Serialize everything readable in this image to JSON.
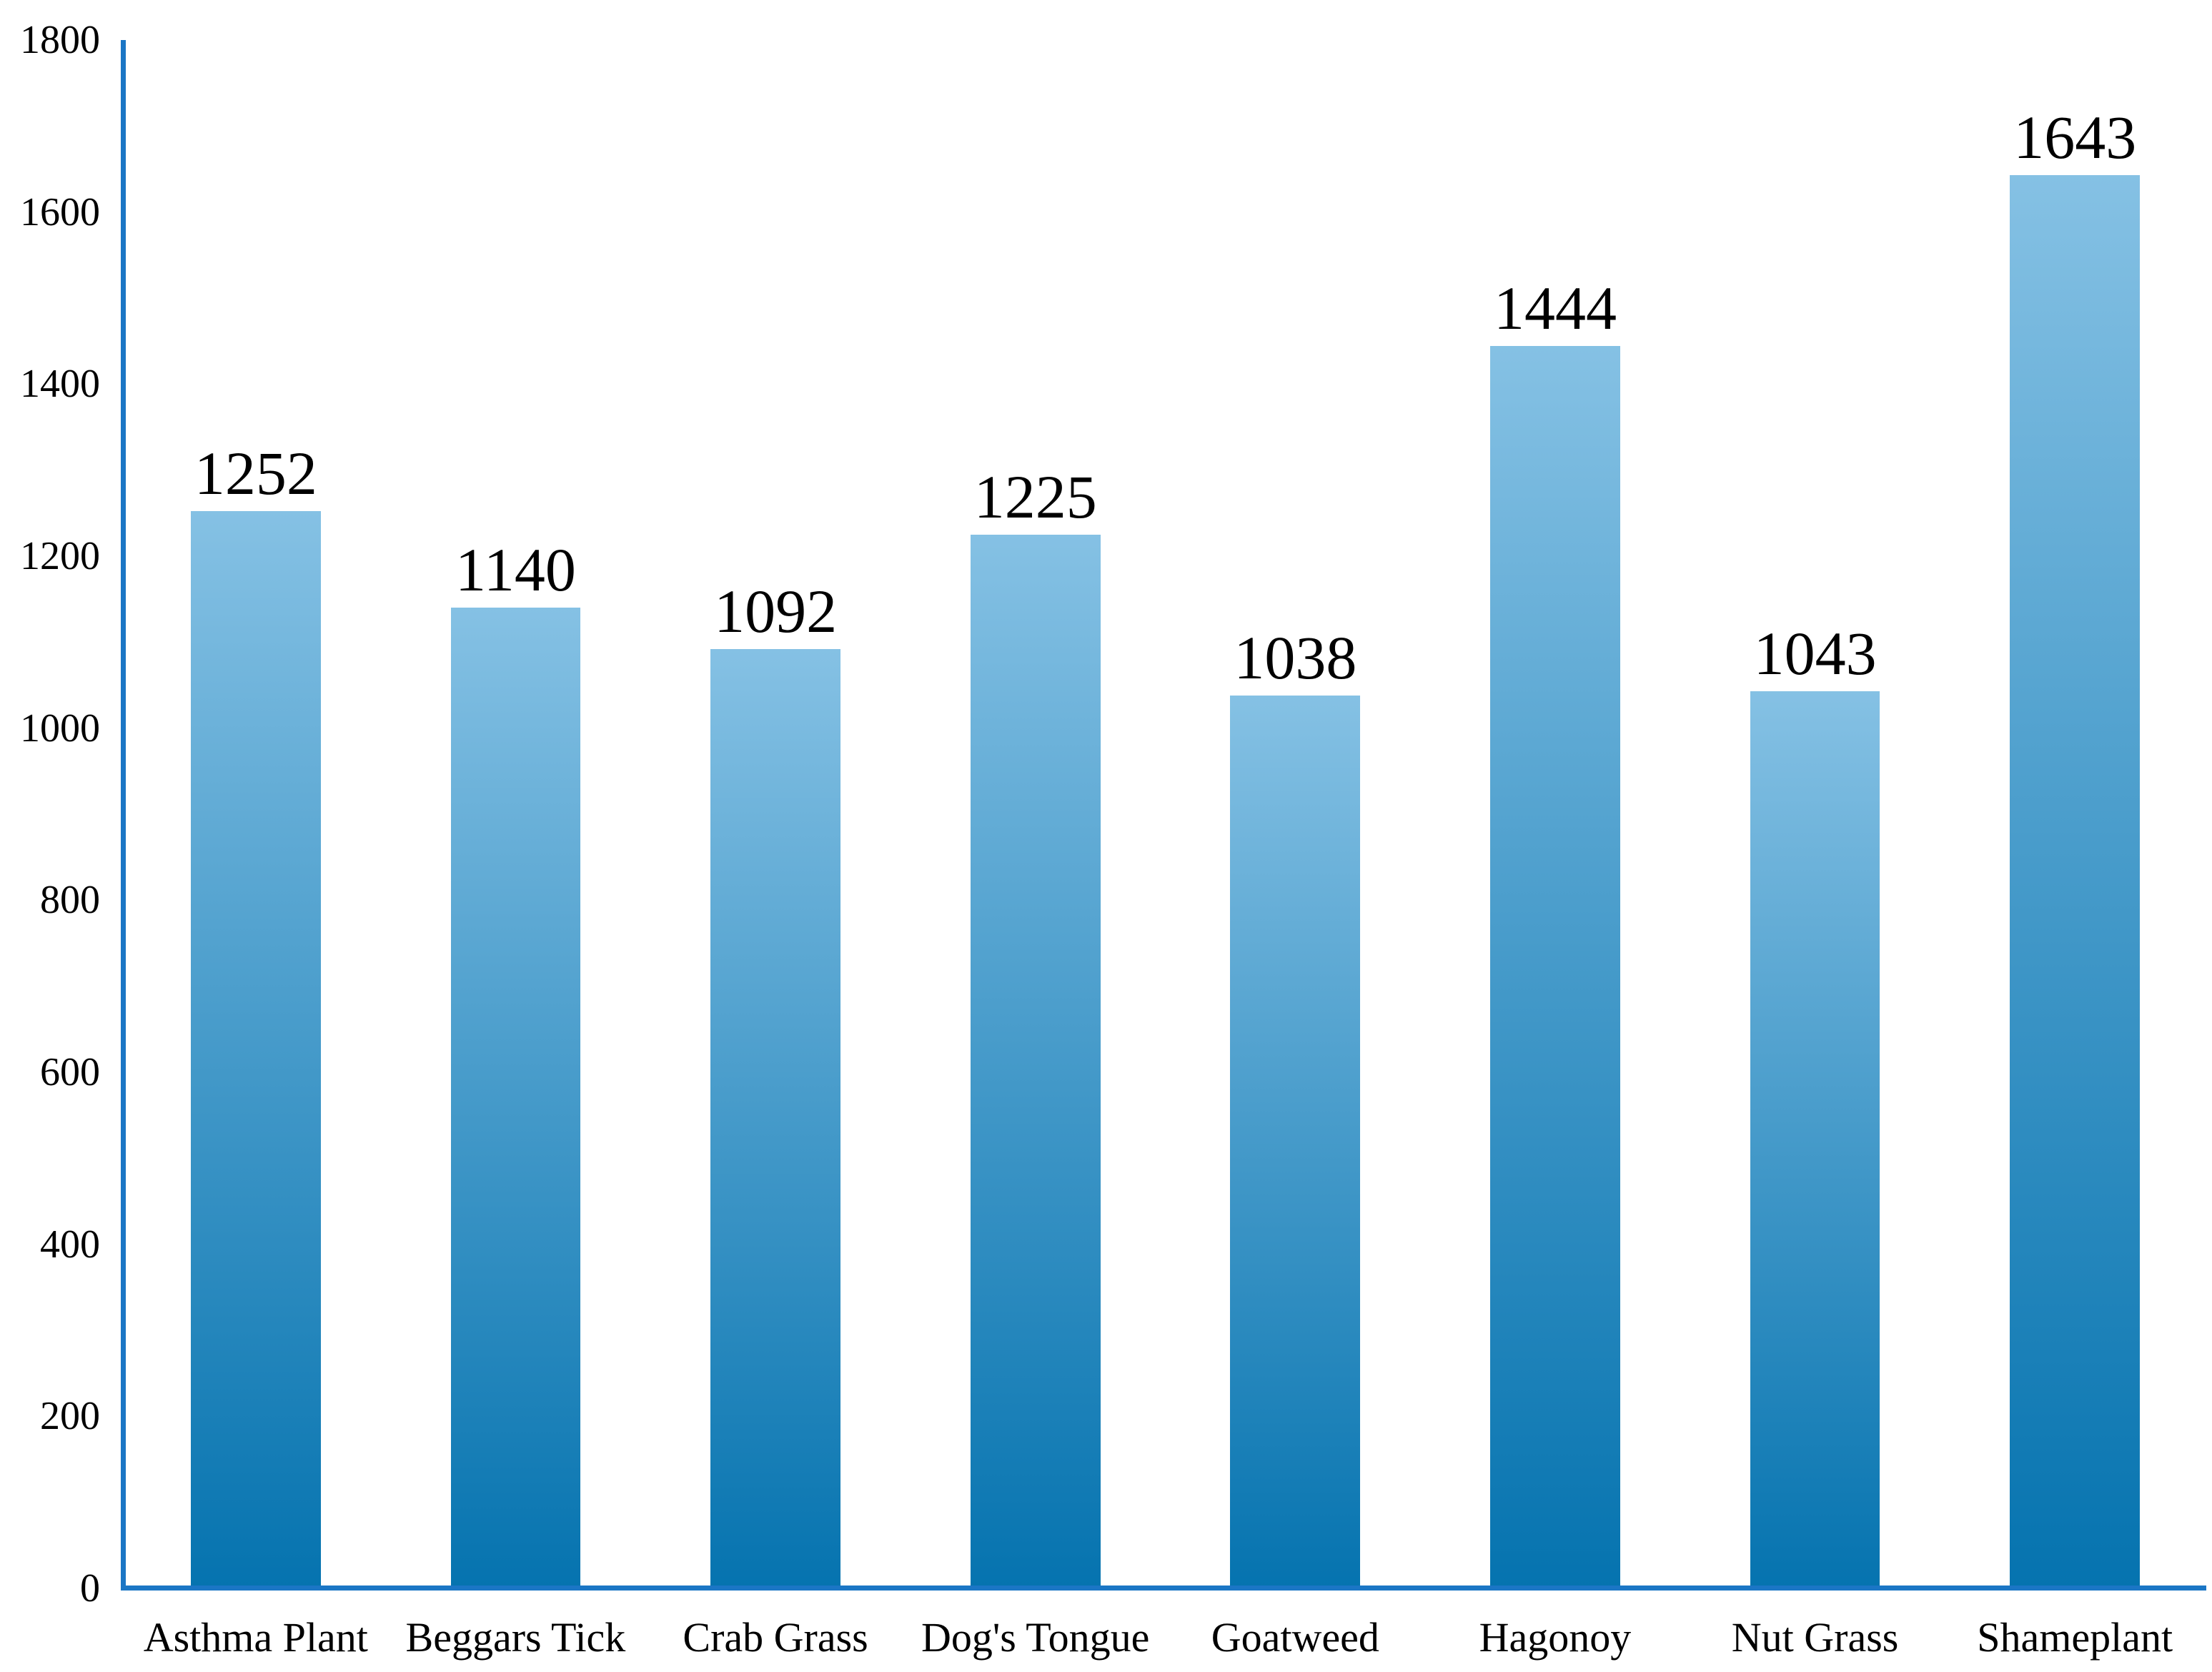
{
  "chart_data": {
    "type": "bar",
    "title": "",
    "xlabel": "",
    "ylabel": "",
    "categories": [
      "Asthma Plant",
      "Beggars Tick",
      "Crab Grass",
      "Dog's Tongue",
      "Goatweed",
      "Hagonoy",
      "Nut Grass",
      "Shameplant"
    ],
    "values": [
      1252,
      1140,
      1092,
      1225,
      1038,
      1444,
      1043,
      1643
    ],
    "data_labels_shown": true,
    "ylim": [
      0,
      1800
    ],
    "y_ticks": [
      0,
      200,
      400,
      600,
      800,
      1000,
      1200,
      1400,
      1600,
      1800
    ],
    "grid": false,
    "legend": "none",
    "style": {
      "bar_gradient_top": "#85C1E4",
      "bar_gradient_bottom": "#0573AF",
      "axis_color": "#1B76C5",
      "text_color": "#000000",
      "background_color": "#FFFFFF"
    }
  }
}
